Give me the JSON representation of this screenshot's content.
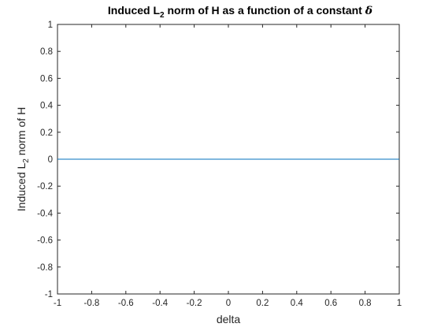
{
  "chart_data": {
    "type": "line",
    "title": {
      "prefix": "Induced L",
      "subscript": "2",
      "middle": " norm of H as a function of a constant ",
      "symbol": "δ"
    },
    "xlabel": "delta",
    "ylabel": {
      "prefix": "Induced L",
      "subscript": "2",
      "suffix": " norm of H"
    },
    "xlim": [
      -1,
      1
    ],
    "ylim": [
      -1,
      1
    ],
    "xticks": [
      -1,
      -0.8,
      -0.6,
      -0.4,
      -0.2,
      0,
      0.2,
      0.4,
      0.6,
      0.8,
      1
    ],
    "yticks": [
      -1,
      -0.8,
      -0.6,
      -0.4,
      -0.2,
      0,
      0.2,
      0.4,
      0.6,
      0.8,
      1
    ],
    "grid": false,
    "series": [
      {
        "color": "#0072bd",
        "x": [
          -1,
          1
        ],
        "y": [
          0,
          0
        ]
      }
    ]
  }
}
